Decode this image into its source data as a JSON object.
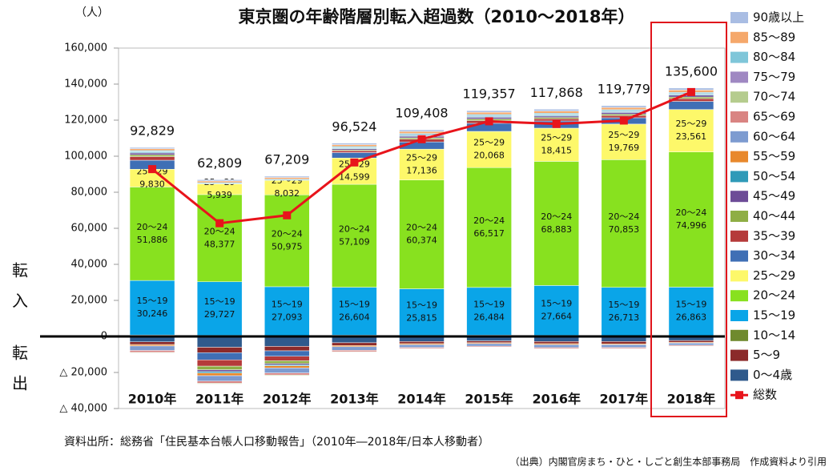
{
  "chart_data": {
    "type": "stacked_bar",
    "title": "東京圏の年齢階層別転入超過数（2010～2018年）",
    "unit": "（人）",
    "side_labels": [
      "転入",
      "転出"
    ],
    "source": "資料出所：総務省「住民基本台帳人口移動報告」（2010年―2018年/日本人移動者）",
    "credit": "（出典）内閣官房まち・ひと・しごと創生本部事務局　作成資料より引用",
    "categories": [
      "2010年",
      "2011年",
      "2012年",
      "2013年",
      "2014年",
      "2015年",
      "2016年",
      "2017年",
      "2018年"
    ],
    "ylim": [
      -40000,
      160000
    ],
    "yticks": [
      {
        "value": -40000,
        "label": "△ 40,000"
      },
      {
        "value": -20000,
        "label": "△ 20,000"
      },
      0,
      {
        "value": 20000,
        "label": "20,000"
      },
      {
        "value": 40000,
        "label": "40,000"
      },
      {
        "value": 60000,
        "label": "60,000"
      },
      {
        "value": 80000,
        "label": "80,000"
      },
      {
        "value": 100000,
        "label": "100,000"
      },
      {
        "value": 120000,
        "label": "120,000"
      },
      {
        "value": 140000,
        "label": "140,000"
      },
      {
        "value": 160000,
        "label": "160,000"
      }
    ],
    "series": [
      {
        "name": "0～4歳",
        "color": "#2f5a8c",
        "values": [
          -3000,
          -6000,
          -5500,
          -3500,
          -2800,
          -2500,
          -2800,
          -2800,
          -2300
        ]
      },
      {
        "name": "5～9",
        "color": "#8b2a2a",
        "values": [
          -1500,
          -3000,
          -2500,
          -1500,
          -1200,
          -1000,
          -1200,
          -1300,
          -1000
        ]
      },
      {
        "name": "10～14",
        "color": "#6f8a2e",
        "values": [
          800,
          600,
          500,
          700,
          600,
          700,
          600,
          500,
          500
        ]
      },
      {
        "name": "15～19",
        "color": "#0aa5e8",
        "values": [
          30246,
          29727,
          27093,
          26604,
          25815,
          26484,
          27664,
          26713,
          26863
        ],
        "value_labels": [
          "30,246",
          "29,727",
          "27,093",
          "26,604",
          "25,815",
          "26,484",
          "27,664",
          "26,713",
          "26,863"
        ]
      },
      {
        "name": "20～24",
        "color": "#88e11f",
        "values": [
          51886,
          48377,
          50975,
          57109,
          60374,
          66517,
          68883,
          70853,
          74996
        ],
        "value_labels": [
          "51,886",
          "48,377",
          "50,975",
          "57,109",
          "60,374",
          "66,517",
          "68,883",
          "70,853",
          "74,996"
        ]
      },
      {
        "name": "25～29",
        "color": "#fdf86a",
        "values": [
          9830,
          5939,
          8032,
          14599,
          17136,
          20068,
          18415,
          19769,
          23561
        ],
        "value_labels": [
          "9,830",
          "5,939",
          "8,032",
          "14,599",
          "17,136",
          "20,068",
          "18,415",
          "19,769",
          "23,561"
        ]
      },
      {
        "name": "30～34",
        "color": "#3f6fb5",
        "values": [
          5000,
          -4000,
          -3000,
          3000,
          4000,
          4500,
          4000,
          3500,
          4500
        ]
      },
      {
        "name": "35～39",
        "color": "#b53a3a",
        "values": [
          2000,
          -3500,
          -2500,
          1000,
          1500,
          1500,
          1200,
          1200,
          1500
        ]
      },
      {
        "name": "40～44",
        "color": "#8fae45",
        "values": [
          1000,
          -2000,
          -1500,
          500,
          800,
          900,
          700,
          800,
          900
        ]
      },
      {
        "name": "45～49",
        "color": "#6d4c97",
        "values": [
          1000,
          -1000,
          -700,
          600,
          800,
          900,
          800,
          900,
          1000
        ]
      },
      {
        "name": "50～54",
        "color": "#2f9ab8",
        "values": [
          500,
          -800,
          -600,
          400,
          500,
          500,
          500,
          500,
          500
        ]
      },
      {
        "name": "55～59",
        "color": "#e8882c",
        "values": [
          -800,
          -1500,
          -1200,
          -700,
          -600,
          -500,
          -600,
          -500,
          -400
        ]
      },
      {
        "name": "60～64",
        "color": "#7d9bd0",
        "values": [
          -2500,
          -3000,
          -2800,
          -2000,
          -1500,
          -1400,
          -1600,
          -1500,
          -1200
        ]
      },
      {
        "name": "65～69",
        "color": "#d98482",
        "values": [
          -1000,
          -1200,
          -1100,
          -800,
          -600,
          -500,
          -600,
          -600,
          -500
        ]
      },
      {
        "name": "70～74",
        "color": "#b5cc8e",
        "values": [
          -300,
          -400,
          -400,
          -300,
          -200,
          -200,
          -200,
          -200,
          -200
        ]
      },
      {
        "name": "75～79",
        "color": "#9f88c2",
        "values": [
          200,
          100,
          100,
          200,
          300,
          300,
          300,
          300,
          300
        ]
      },
      {
        "name": "80～84",
        "color": "#7fc6d9",
        "values": [
          700,
          600,
          600,
          700,
          800,
          800,
          800,
          800,
          800
        ]
      },
      {
        "name": "85～89",
        "color": "#f5a86b",
        "values": [
          1000,
          900,
          900,
          1000,
          1100,
          1200,
          1200,
          1200,
          1300
        ]
      },
      {
        "name": "90歳以上",
        "color": "#a9bde3",
        "values": [
          700,
          700,
          700,
          800,
          900,
          900,
          1000,
          1000,
          1100
        ]
      }
    ],
    "line_series": {
      "name": "総数",
      "color": "#e8141b",
      "values": [
        92829,
        62809,
        67209,
        96524,
        109408,
        119357,
        117868,
        119779,
        135600
      ],
      "value_labels": [
        "92,829",
        "62,809",
        "67,209",
        "96,524",
        "109,408",
        "119,357",
        "117,868",
        "119,779",
        "135,600"
      ]
    }
  }
}
